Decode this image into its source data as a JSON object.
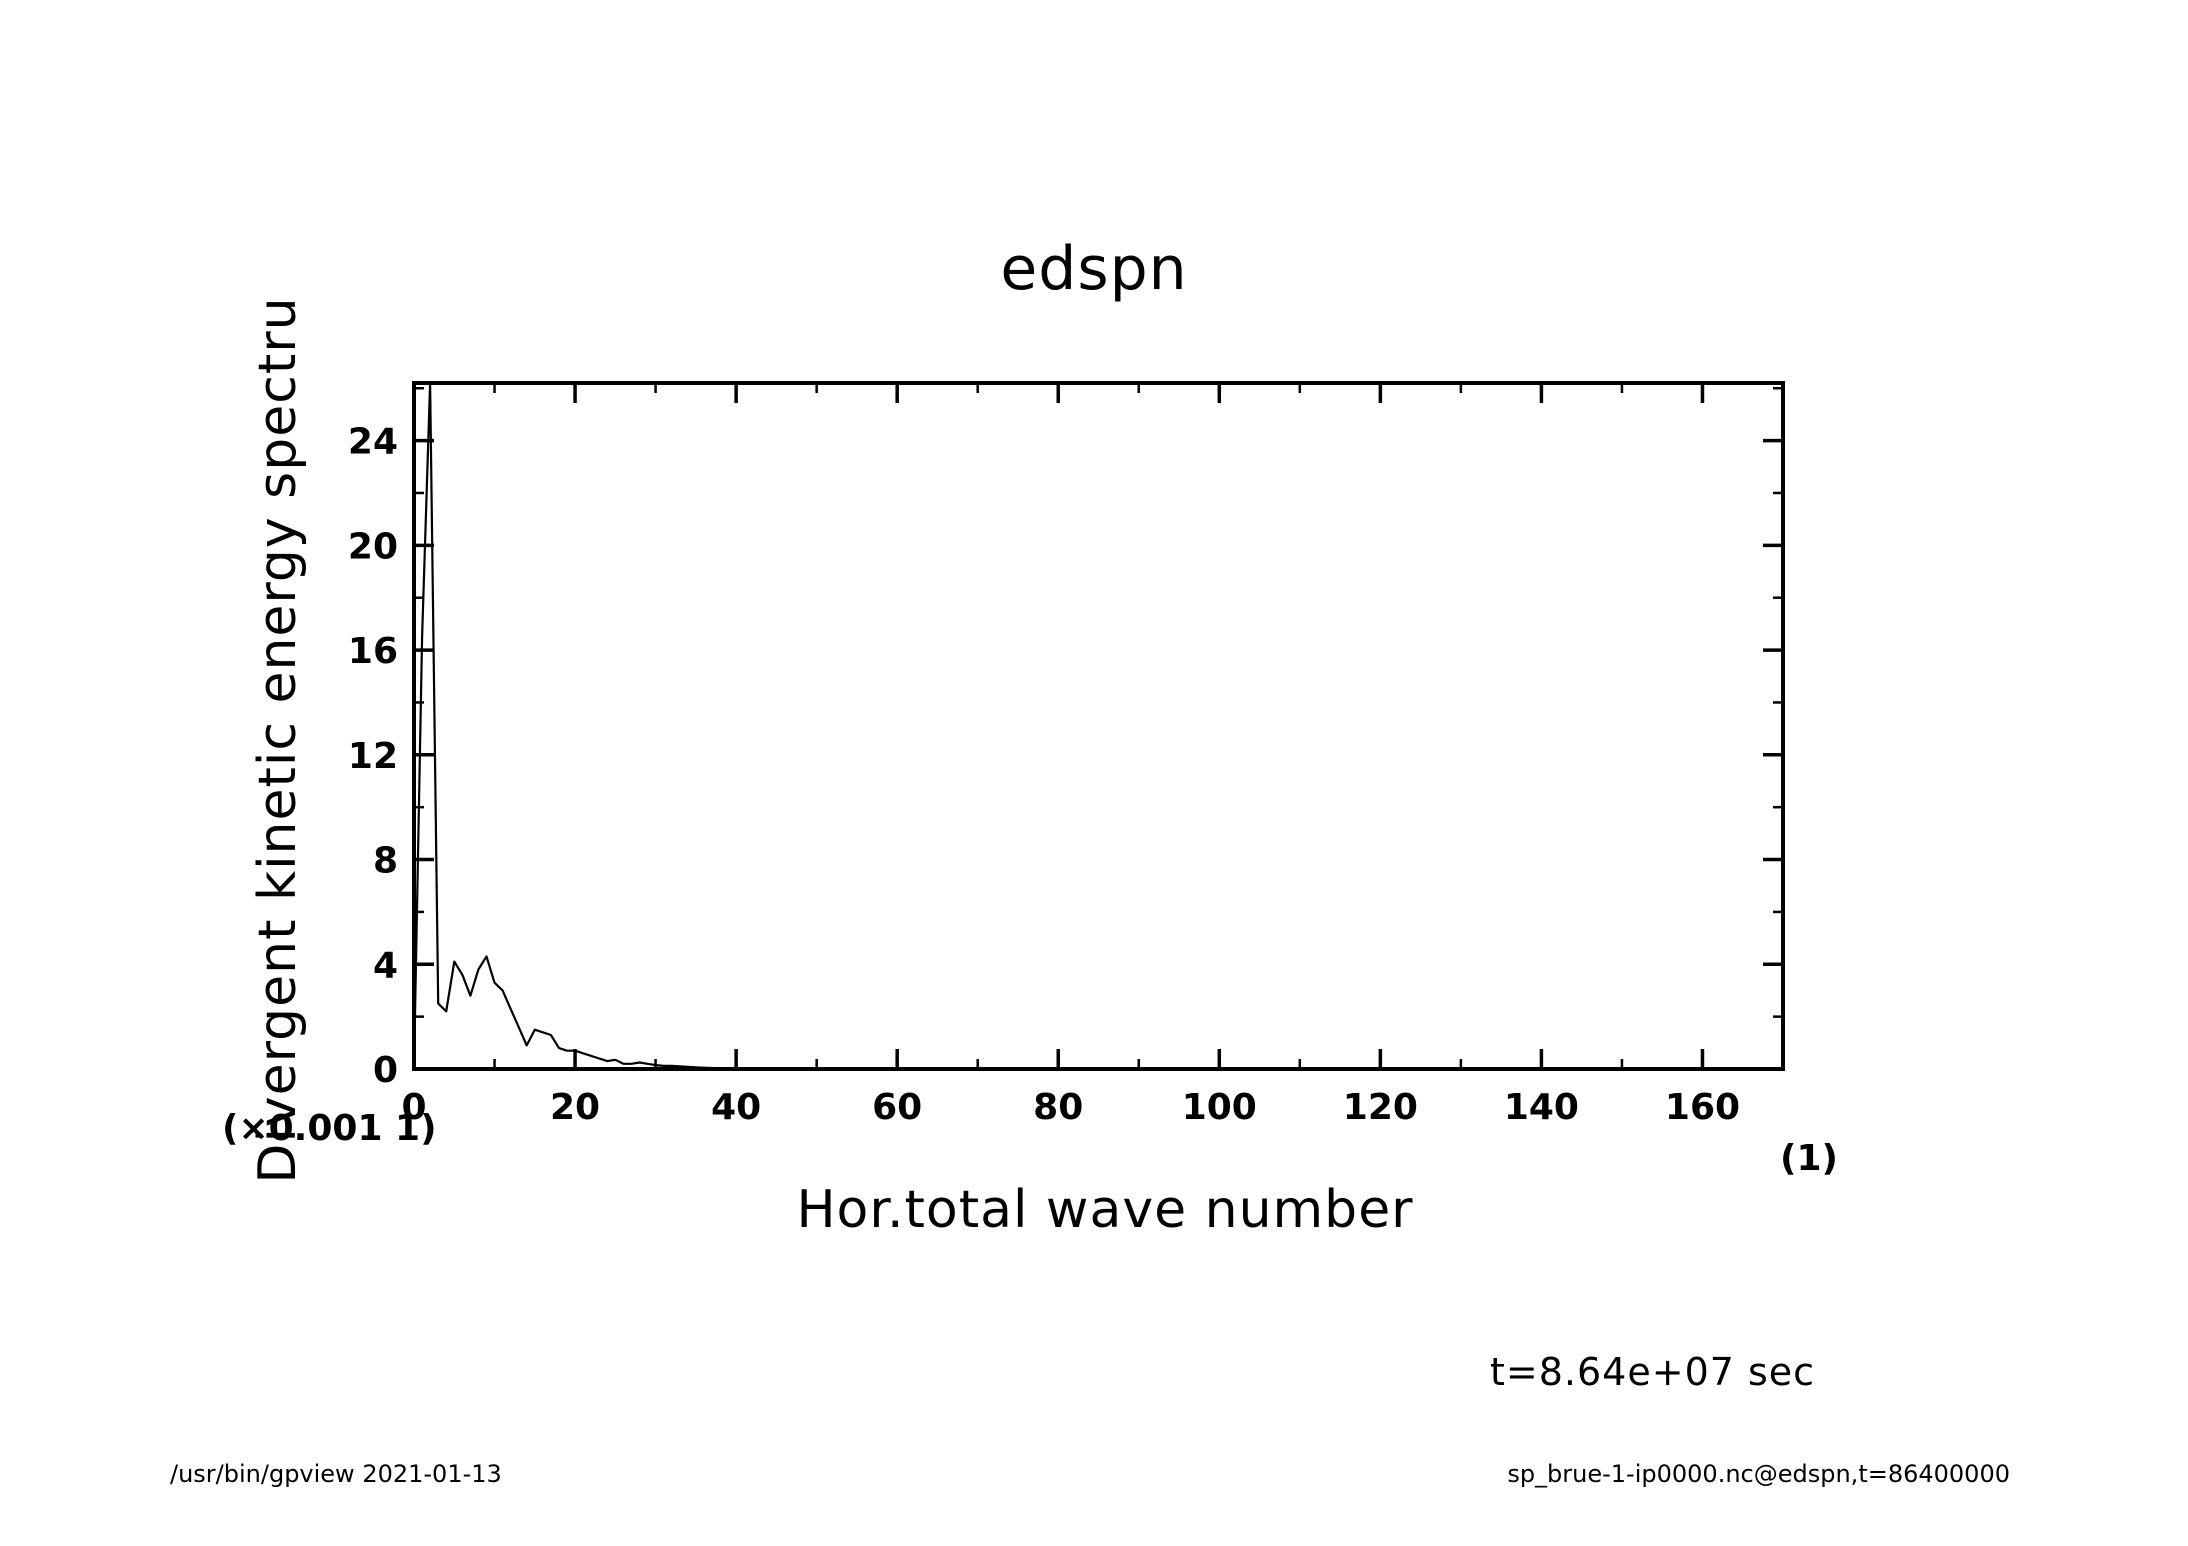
{
  "chart_data": {
    "type": "line",
    "title": "edspn",
    "xlabel": "Hor.total wave number",
    "ylabel": "Divergent kinetic energy spectru",
    "x_unit_label": "(1)",
    "y_scale_label": "(×0.001 1)",
    "xlim": [
      0,
      170
    ],
    "ylim": [
      0,
      26.2
    ],
    "x_ticks": [
      0,
      20,
      40,
      60,
      80,
      100,
      120,
      140,
      160
    ],
    "y_ticks": [
      0,
      4,
      8,
      12,
      16,
      20,
      24
    ],
    "grid": false,
    "series": [
      {
        "x": [
          0,
          1,
          2,
          3,
          4,
          5,
          6,
          7,
          8,
          9,
          10,
          11,
          12,
          13,
          14,
          15,
          16,
          17,
          18,
          19,
          20,
          21,
          22,
          23,
          24,
          25,
          26,
          27,
          28,
          29,
          30,
          31,
          32,
          33,
          34,
          35,
          36,
          37,
          38,
          39,
          40,
          45,
          50,
          60,
          80,
          100,
          120,
          140,
          160,
          170
        ],
        "y": [
          0,
          16.5,
          26.2,
          2.5,
          2.2,
          4.1,
          3.6,
          2.8,
          3.8,
          4.3,
          3.3,
          3.0,
          2.3,
          1.6,
          0.9,
          1.5,
          1.4,
          1.3,
          0.8,
          0.7,
          0.7,
          0.6,
          0.5,
          0.4,
          0.3,
          0.35,
          0.2,
          0.2,
          0.25,
          0.2,
          0.15,
          0.12,
          0.12,
          0.1,
          0.08,
          0.06,
          0.05,
          0.04,
          0.03,
          0.03,
          0.02,
          0.01,
          0.005,
          0,
          0,
          0,
          0,
          0,
          0,
          0
        ],
        "color": "#000000"
      }
    ],
    "annotation": "t=8.64e+07 sec"
  },
  "footer": {
    "left": "/usr/bin/gpview   2021-01-13",
    "right": "sp_brue-1-ip0000.nc@edspn,t=86400000"
  }
}
